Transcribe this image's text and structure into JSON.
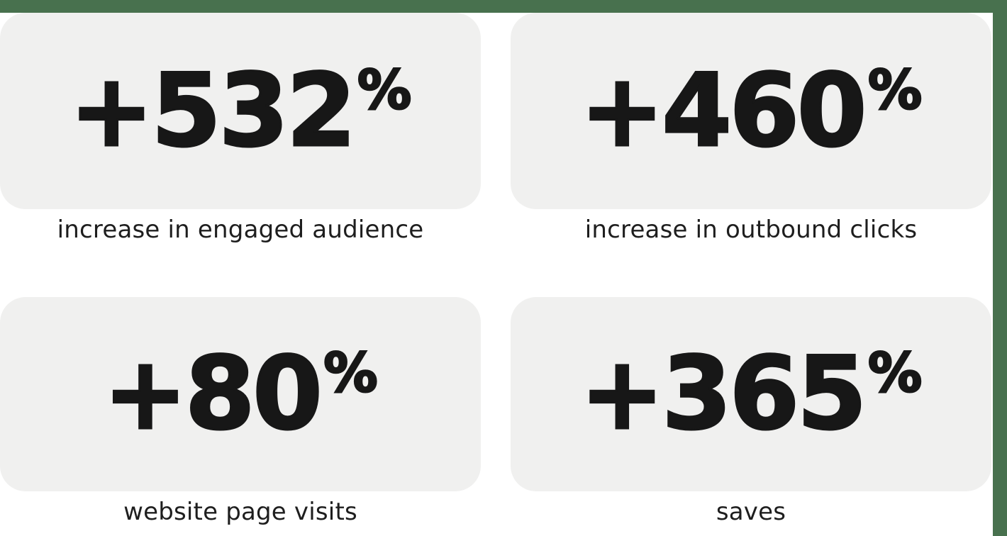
{
  "theme": {
    "accent_color": "#48714E",
    "card_background": "#F0F0EF",
    "number_color": "#171717",
    "caption_color": "#1E1E1E"
  },
  "stats": [
    {
      "value": "+532",
      "unit": "%",
      "caption": "increase in engaged audience"
    },
    {
      "value": "+460",
      "unit": "%",
      "caption": "increase in outbound clicks"
    },
    {
      "value": "+80",
      "unit": "%",
      "caption": "website page visits"
    },
    {
      "value": "+365",
      "unit": "%",
      "caption": "saves"
    }
  ]
}
